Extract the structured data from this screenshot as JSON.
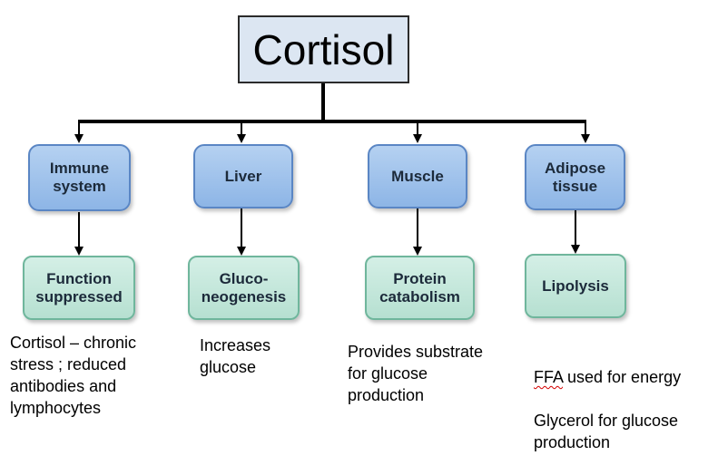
{
  "title": "Cortisol",
  "targets": [
    {
      "organ": "Immune\nsystem",
      "effect": "Function\nsuppressed",
      "note": "Cortisol – chronic\nstress ; reduced\nantibodies and\nlymphocytes"
    },
    {
      "organ": "Liver",
      "effect": "Gluco-\nneogenesis",
      "note": "Increases\nglucose"
    },
    {
      "organ": "Muscle",
      "effect": "Protein\ncatabolism",
      "note": "Provides substrate\nfor glucose\nproduction"
    },
    {
      "organ": "Adipose\ntissue",
      "effect": "Lipolysis",
      "note_line1_underlined": "FFA",
      "note_line1_rest": " used for energy",
      "note_rest": "Glycerol for glucose\nproduction"
    }
  ],
  "colors": {
    "title_fill": "#dce6f2",
    "organ_fill": "#a3c3ec",
    "effect_fill": "#c5e8db",
    "connector": "#000000"
  }
}
